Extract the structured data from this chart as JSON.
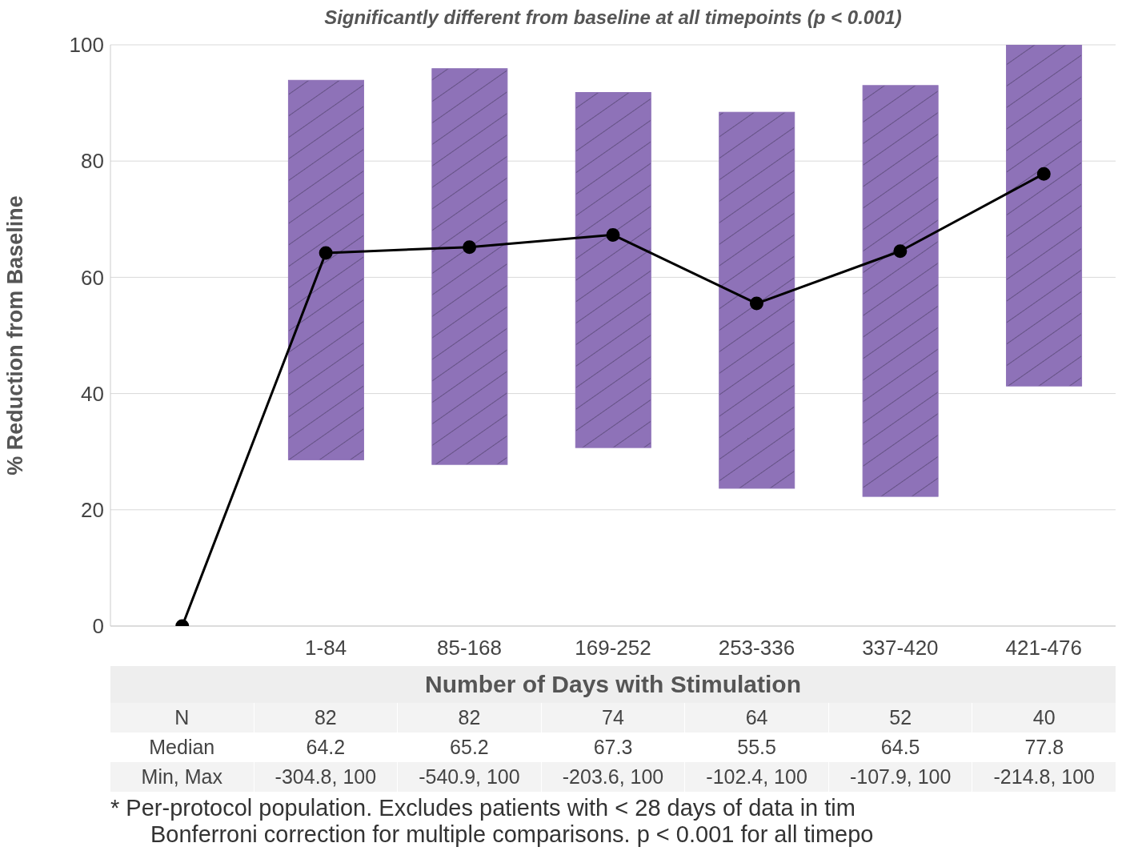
{
  "chart_data": {
    "type": "bar",
    "title": "Significantly different from baseline at all timepoints (p < 0.001)",
    "xlabel": "Number of Days with Stimulation",
    "ylabel": "% Reduction from Baseline",
    "categories": [
      null,
      "1-84",
      "85-168",
      "169-252",
      "253-336",
      "337-420",
      "421-476"
    ],
    "series": [
      {
        "color": "#8e72b8",
        "base": [
          null,
          28.6,
          27.8,
          30.7,
          23.7,
          22.3,
          41.3
        ],
        "values": [
          null,
          65.3,
          68.1,
          61.1,
          64.7,
          70.7,
          58.7
        ]
      },
      {
        "type": "line",
        "color": "#000000",
        "marker": "circle",
        "values": [
          0,
          64.2,
          65.2,
          67.3,
          55.5,
          64.5,
          77.8
        ]
      }
    ],
    "ylim": [
      0,
      100
    ],
    "yticks": [
      0,
      20,
      40,
      60,
      80,
      100
    ],
    "grid": "y",
    "annotations": [
      "N",
      "82",
      "82",
      "74",
      "64",
      "52",
      "40",
      "Median",
      "64.2",
      "65.2",
      "67.3",
      "55.5",
      "64.5",
      "77.8",
      "Min, Max",
      "-304.8, 100",
      "-540.9, 100",
      "-203.6, 100",
      "-102.4, 100",
      "-107.9, 100",
      "-214.8, 100",
      "*   Per-protocol population. Excludes patients with < 28 days of data in tim",
      "Bonferroni correction for multiple comparisons. p < 0.001 for all timepo"
    ]
  }
}
